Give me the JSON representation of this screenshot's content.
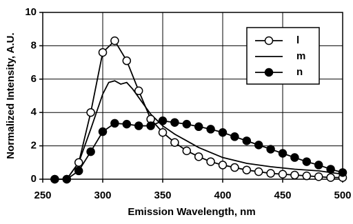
{
  "chart_data": {
    "type": "line",
    "x_label": "Emission Wavelength, nm",
    "y_label": "Normalized Intensity, A.U.",
    "xlim": [
      250,
      500
    ],
    "xticks": [
      250,
      300,
      350,
      400,
      450,
      500
    ],
    "ylim": [
      0,
      10
    ],
    "yticks": [
      0,
      2,
      4,
      6,
      8,
      10
    ],
    "grid": true,
    "legend": "upper right",
    "series": [
      {
        "name": "l",
        "color": "#000000",
        "marker": "open",
        "x": [
          260,
          270,
          280,
          290,
          300,
          310,
          320,
          330,
          340,
          350,
          360,
          370,
          380,
          390,
          400,
          410,
          420,
          430,
          440,
          450,
          460,
          470,
          480,
          490,
          500
        ],
        "values": [
          0,
          0,
          1.0,
          4.0,
          7.6,
          8.3,
          7.1,
          5.3,
          3.6,
          2.8,
          2.2,
          1.7,
          1.35,
          1.05,
          0.85,
          0.7,
          0.55,
          0.45,
          0.35,
          0.3,
          0.25,
          0.2,
          0.15,
          0.1,
          0.1
        ]
      },
      {
        "name": "m",
        "color": "#000000",
        "marker": "none",
        "x": [
          270,
          280,
          290,
          300,
          305,
          310,
          315,
          320,
          325,
          330,
          340,
          350,
          360,
          370,
          380,
          390,
          400,
          420,
          440,
          460,
          480,
          500
        ],
        "values": [
          0,
          1.0,
          3.0,
          5.1,
          5.8,
          5.9,
          5.7,
          5.8,
          5.4,
          4.9,
          3.9,
          3.2,
          2.7,
          2.3,
          1.9,
          1.6,
          1.3,
          0.95,
          0.75,
          0.6,
          0.5,
          0.3
        ]
      },
      {
        "name": "n",
        "color": "#000000",
        "marker": "filled",
        "x": [
          260,
          270,
          280,
          290,
          300,
          310,
          320,
          330,
          340,
          350,
          360,
          370,
          380,
          390,
          400,
          410,
          420,
          430,
          440,
          450,
          460,
          470,
          480,
          490,
          500
        ],
        "values": [
          0,
          0,
          0.5,
          1.65,
          2.85,
          3.35,
          3.3,
          3.2,
          3.2,
          3.5,
          3.4,
          3.3,
          3.15,
          3.0,
          2.8,
          2.55,
          2.3,
          2.05,
          1.8,
          1.55,
          1.3,
          1.05,
          0.85,
          0.6,
          0.4
        ]
      }
    ]
  }
}
